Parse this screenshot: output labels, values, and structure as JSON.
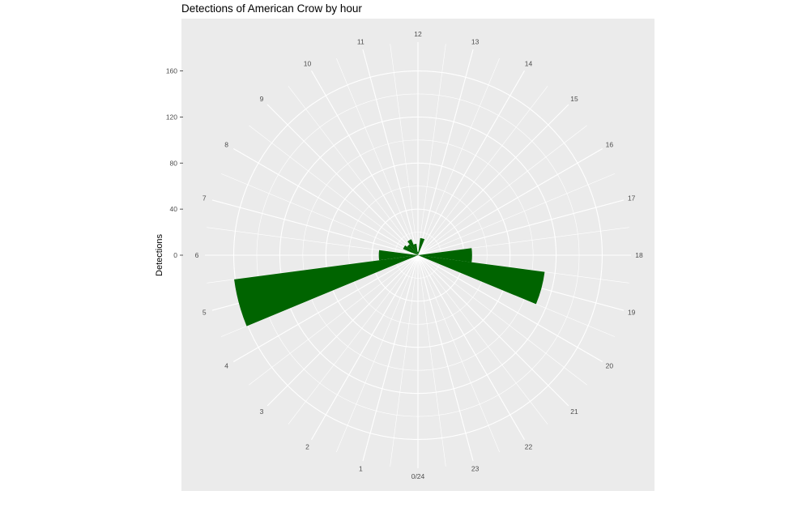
{
  "chart_data": {
    "type": "bar",
    "coord": "polar",
    "title": "Detections of American Crow by hour",
    "xlabel": "",
    "ylabel": "Detections",
    "ylim": [
      0,
      185
    ],
    "yticks": [
      0,
      40,
      80,
      120,
      160
    ],
    "hour_labels": [
      "0/24",
      "1",
      "2",
      "3",
      "4",
      "5",
      "6",
      "7",
      "8",
      "9",
      "10",
      "11",
      "12",
      "13",
      "14",
      "15",
      "16",
      "17",
      "18",
      "19",
      "20",
      "21",
      "22",
      "23"
    ],
    "hours": [
      0,
      1,
      2,
      3,
      4,
      5,
      6,
      7,
      8,
      9,
      10,
      11,
      12,
      13,
      14,
      15,
      16,
      17,
      18,
      19,
      20,
      21,
      22,
      23
    ],
    "values": [
      0,
      0,
      0,
      0,
      0,
      161,
      34,
      0,
      14,
      12,
      15,
      10,
      3,
      15,
      0,
      0,
      0,
      0,
      47,
      111,
      0,
      0,
      0,
      0
    ],
    "bar_color": "#006400",
    "panel_background": "#ebebeb",
    "grid_color": "#ffffff",
    "grid": true,
    "legend": "none"
  }
}
